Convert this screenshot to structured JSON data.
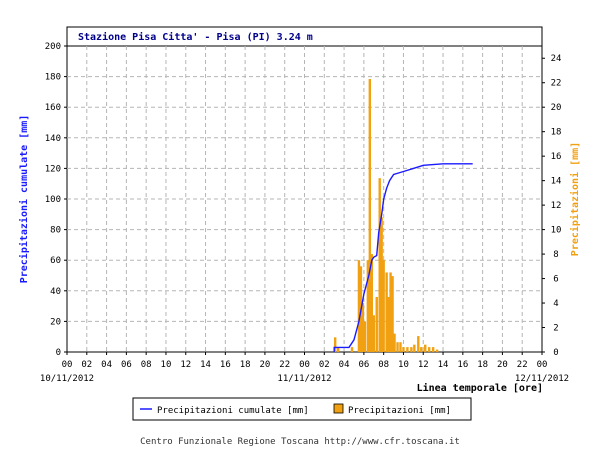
{
  "chart_data": {
    "type": "bar+line",
    "title": "Stazione Pisa Citta' - Pisa (PI) 3.24 m",
    "xlabel": "Linea temporale [ore]",
    "ylabel_left": "Precipitazioni cumulate [mm]",
    "ylabel_right": "Precipitazioni [mm]",
    "x_hour_range": [
      0,
      48
    ],
    "x_tick_labels": [
      "00",
      "02",
      "04",
      "06",
      "08",
      "10",
      "12",
      "14",
      "16",
      "18",
      "20",
      "22",
      "00",
      "02",
      "04",
      "06",
      "08",
      "10",
      "12",
      "14",
      "16",
      "18",
      "20",
      "22",
      "00"
    ],
    "x_date_labels": [
      {
        "hour": 0,
        "text": "10/11/2012"
      },
      {
        "hour": 24,
        "text": "11/11/2012"
      },
      {
        "hour": 48,
        "text": "12/11/2012"
      }
    ],
    "ylim_left": [
      0,
      200
    ],
    "yticks_left": [
      0,
      20,
      40,
      60,
      80,
      100,
      120,
      140,
      160,
      180,
      200
    ],
    "ylim_right": [
      0,
      25
    ],
    "yticks_right": [
      0,
      2,
      4,
      6,
      8,
      10,
      12,
      14,
      16,
      18,
      20,
      22,
      24
    ],
    "grid": true,
    "series": [
      {
        "name": "Precipitazioni cumulate [mm]",
        "kind": "line",
        "axis": "left",
        "color": "#1a1aff",
        "points": [
          [
            27.0,
            0
          ],
          [
            27.0,
            3
          ],
          [
            28.5,
            3
          ],
          [
            29.0,
            8
          ],
          [
            29.5,
            20
          ],
          [
            30.0,
            38
          ],
          [
            30.5,
            50
          ],
          [
            30.8,
            60
          ],
          [
            31.0,
            62
          ],
          [
            31.3,
            63
          ],
          [
            31.5,
            78
          ],
          [
            31.8,
            90
          ],
          [
            32.0,
            100
          ],
          [
            32.3,
            107
          ],
          [
            32.6,
            112
          ],
          [
            33.0,
            116
          ],
          [
            33.5,
            117
          ],
          [
            34.0,
            118
          ],
          [
            35.0,
            120
          ],
          [
            36.0,
            122
          ],
          [
            38.0,
            123
          ],
          [
            41.0,
            123
          ]
        ]
      },
      {
        "name": "Precipitazioni [mm]",
        "kind": "bar",
        "axis": "right",
        "color": "#f0a010",
        "bars": [
          [
            27.1,
            1.2
          ],
          [
            27.4,
            0.4
          ],
          [
            28.8,
            0.4
          ],
          [
            29.5,
            7.5
          ],
          [
            29.7,
            7.0
          ],
          [
            29.9,
            4.0
          ],
          [
            30.1,
            2.5
          ],
          [
            30.4,
            7.5
          ],
          [
            30.6,
            22.3
          ],
          [
            30.8,
            8.0
          ],
          [
            31.0,
            3.0
          ],
          [
            31.3,
            4.5
          ],
          [
            31.6,
            14.2
          ],
          [
            31.8,
            11.0
          ],
          [
            32.0,
            7.5
          ],
          [
            32.3,
            6.5
          ],
          [
            32.5,
            4.5
          ],
          [
            32.7,
            6.5
          ],
          [
            32.9,
            6.2
          ],
          [
            33.1,
            1.5
          ],
          [
            33.4,
            0.8
          ],
          [
            33.7,
            0.8
          ],
          [
            34.0,
            0.4
          ],
          [
            34.4,
            0.4
          ],
          [
            34.8,
            0.4
          ],
          [
            35.1,
            0.6
          ],
          [
            35.5,
            1.3
          ],
          [
            35.8,
            0.4
          ],
          [
            36.2,
            0.6
          ],
          [
            36.6,
            0.4
          ],
          [
            37.0,
            0.4
          ],
          [
            37.4,
            0.2
          ]
        ]
      }
    ],
    "legend": {
      "position": "bottom-center",
      "items": [
        {
          "label": "Precipitazioni cumulate [mm]",
          "color": "#1a1aff",
          "marker": "line"
        },
        {
          "label": "Precipitazioni [mm]",
          "color": "#f0a010",
          "marker": "box"
        }
      ]
    }
  },
  "footer": "Centro Funzionale Regione Toscana http://www.cfr.toscana.it"
}
